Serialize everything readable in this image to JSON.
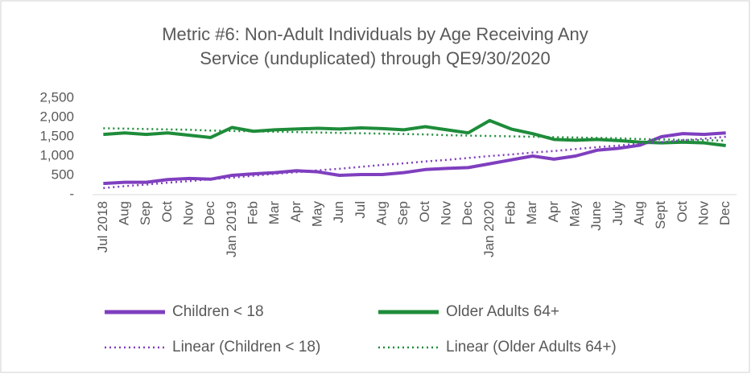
{
  "chart_data": {
    "type": "line",
    "title": [
      "Metric #6: Non-Adult Individuals  by Age Receiving Any",
      "Service (unduplicated)  through  QE9/30/2020"
    ],
    "categories": [
      "Jul 2018",
      "Aug",
      "Sep",
      "Oct",
      "Nov",
      "Dec",
      "Jan 2019",
      "Feb",
      "Mar",
      "Apr",
      "May",
      "Jun",
      "Jul",
      "Aug",
      "Sep",
      "Oct",
      "Nov",
      "Dec",
      "Jan 2020",
      "Feb",
      "Mar",
      "Apr",
      "May",
      "June",
      "July",
      "Aug",
      "Sept",
      "Oct",
      "Nov",
      "Dec"
    ],
    "series": [
      {
        "name": "Children < 18",
        "color": "#7f3fbf",
        "dashed": false,
        "values": [
          290,
          320,
          320,
          390,
          420,
          400,
          500,
          540,
          570,
          620,
          590,
          500,
          520,
          520,
          570,
          650,
          680,
          700,
          800,
          900,
          1000,
          920,
          1000,
          1150,
          1200,
          1280,
          1500,
          1580,
          1560,
          1600
        ]
      },
      {
        "name": "Older Adults 64+",
        "color": "#1e8c3a",
        "dashed": false,
        "values": [
          1560,
          1600,
          1560,
          1600,
          1540,
          1480,
          1740,
          1640,
          1680,
          1700,
          1720,
          1700,
          1730,
          1710,
          1680,
          1760,
          1680,
          1600,
          1920,
          1700,
          1580,
          1430,
          1410,
          1430,
          1400,
          1360,
          1340,
          1360,
          1340,
          1270
        ]
      },
      {
        "name": "Linear (Children < 18)",
        "color": "#7f3fbf",
        "dashed": true,
        "values": [
          170,
          220,
          260,
          310,
          350,
          400,
          440,
          490,
          540,
          580,
          630,
          670,
          720,
          770,
          810,
          860,
          900,
          950,
          1000,
          1040,
          1090,
          1130,
          1180,
          1230,
          1270,
          1320,
          1360,
          1410,
          1450,
          1500
        ]
      },
      {
        "name": "Linear (Older Adults 64+)",
        "color": "#1e8c3a",
        "dashed": true,
        "values": [
          1720,
          1710,
          1700,
          1690,
          1680,
          1660,
          1650,
          1640,
          1630,
          1620,
          1610,
          1600,
          1590,
          1580,
          1570,
          1560,
          1540,
          1530,
          1520,
          1510,
          1500,
          1490,
          1480,
          1470,
          1460,
          1440,
          1430,
          1420,
          1410,
          1400
        ]
      }
    ],
    "ylim": [
      0,
      2500
    ],
    "yticks": [
      {
        "value": 0,
        "label": "-"
      },
      500,
      {
        "value": 1000,
        "label": "1,000"
      },
      {
        "value": 1500,
        "label": "1,500"
      },
      {
        "value": 2000,
        "label": "2,000"
      },
      {
        "value": 2500,
        "label": "2,500"
      }
    ],
    "grid": false
  }
}
